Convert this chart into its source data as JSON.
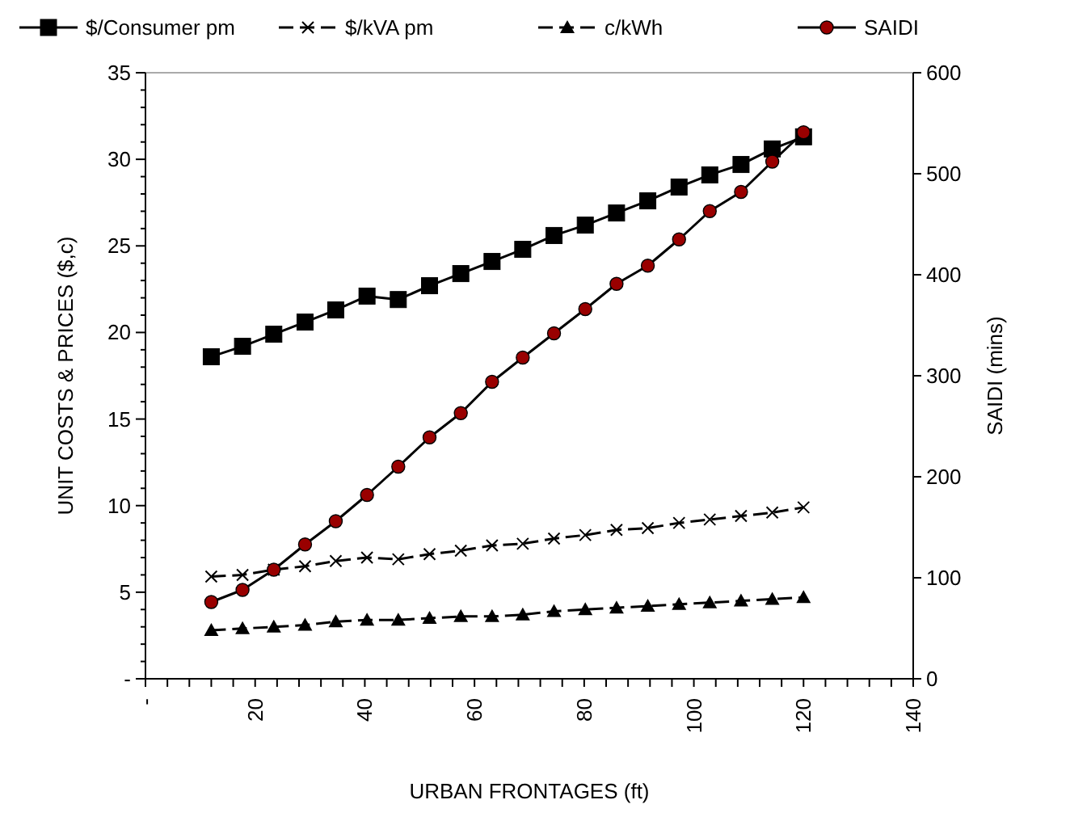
{
  "chart_data": {
    "type": "line",
    "xlabel": "URBAN FRONTAGES (ft)",
    "ylabel": "UNIT COSTS & PRICES ($,c)",
    "y2label": "SAIDI (mins)",
    "x": [
      12,
      17.7,
      23.4,
      29.1,
      34.7,
      40.4,
      46.1,
      51.8,
      57.5,
      63.2,
      68.8,
      74.5,
      80.2,
      85.9,
      91.6,
      97.3,
      102.9,
      108.6,
      114.3,
      120
    ],
    "series": [
      {
        "name": "$/Consumer pm",
        "color": "#000000",
        "marker": "square",
        "line_style": "solid",
        "values": [
          18.6,
          19.2,
          19.9,
          20.6,
          21.3,
          22.1,
          21.9,
          22.7,
          23.4,
          24.1,
          24.8,
          25.6,
          26.2,
          26.9,
          27.6,
          28.4,
          29.1,
          29.7,
          30.6,
          31.3
        ]
      },
      {
        "name": "$/kVA pm",
        "color": "#000000",
        "marker": "cross",
        "line_style": "dashed",
        "values": [
          5.9,
          6.0,
          6.3,
          6.5,
          6.8,
          7.0,
          6.9,
          7.2,
          7.4,
          7.7,
          7.8,
          8.1,
          8.3,
          8.6,
          8.7,
          9.0,
          9.2,
          9.4,
          9.6,
          9.9
        ]
      },
      {
        "name": "c/kWh",
        "color": "#000000",
        "marker": "triangle",
        "line_style": "dashed",
        "values": [
          2.8,
          2.9,
          3.0,
          3.1,
          3.3,
          3.4,
          3.4,
          3.5,
          3.6,
          3.6,
          3.7,
          3.9,
          4.0,
          4.1,
          4.2,
          4.3,
          4.4,
          4.5,
          4.6,
          4.7
        ]
      },
      {
        "name": "SAIDI",
        "color": "#990000",
        "marker": "circle",
        "line_style": "solid",
        "axis": "y2",
        "values": [
          76,
          88,
          108,
          133,
          156,
          182,
          210,
          239,
          263,
          294,
          318,
          342,
          366,
          391,
          409,
          435,
          463,
          482,
          512,
          541
        ]
      }
    ],
    "xlim": [
      0,
      140
    ],
    "ylim": [
      0,
      35
    ],
    "y2lim": [
      0,
      600
    ],
    "xticks": [
      {
        "value": 0,
        "label": "-"
      },
      {
        "value": 4,
        "label": null
      },
      {
        "value": 8,
        "label": null
      },
      {
        "value": 12,
        "label": null
      },
      {
        "value": 16,
        "label": null
      },
      20,
      {
        "value": 24,
        "label": null
      },
      {
        "value": 28,
        "label": null
      },
      {
        "value": 32,
        "label": null
      },
      {
        "value": 36,
        "label": null
      },
      40,
      {
        "value": 44,
        "label": null
      },
      {
        "value": 48,
        "label": null
      },
      {
        "value": 52,
        "label": null
      },
      {
        "value": 56,
        "label": null
      },
      60,
      {
        "value": 64,
        "label": null
      },
      {
        "value": 68,
        "label": null
      },
      {
        "value": 72,
        "label": null
      },
      {
        "value": 76,
        "label": null
      },
      80,
      {
        "value": 84,
        "label": null
      },
      {
        "value": 88,
        "label": null
      },
      {
        "value": 92,
        "label": null
      },
      {
        "value": 96,
        "label": null
      },
      100,
      {
        "value": 104,
        "label": null
      },
      {
        "value": 108,
        "label": null
      },
      {
        "value": 112,
        "label": null
      },
      {
        "value": 116,
        "label": null
      },
      120,
      {
        "value": 124,
        "label": null
      },
      {
        "value": 128,
        "label": null
      },
      {
        "value": 132,
        "label": null
      },
      {
        "value": 136,
        "label": null
      },
      140
    ],
    "yticks": [
      {
        "value": 0,
        "label": "-"
      },
      {
        "value": 1,
        "label": null
      },
      {
        "value": 2,
        "label": null
      },
      {
        "value": 3,
        "label": null
      },
      {
        "value": 4,
        "label": null
      },
      5,
      {
        "value": 6,
        "label": null
      },
      {
        "value": 7,
        "label": null
      },
      {
        "value": 8,
        "label": null
      },
      {
        "value": 9,
        "label": null
      },
      10,
      {
        "value": 11,
        "label": null
      },
      {
        "value": 12,
        "label": null
      },
      {
        "value": 13,
        "label": null
      },
      {
        "value": 14,
        "label": null
      },
      15,
      {
        "value": 16,
        "label": null
      },
      {
        "value": 17,
        "label": null
      },
      {
        "value": 18,
        "label": null
      },
      {
        "value": 19,
        "label": null
      },
      20,
      {
        "value": 21,
        "label": null
      },
      {
        "value": 22,
        "label": null
      },
      {
        "value": 23,
        "label": null
      },
      {
        "value": 24,
        "label": null
      },
      25,
      {
        "value": 26,
        "label": null
      },
      {
        "value": 27,
        "label": null
      },
      {
        "value": 28,
        "label": null
      },
      {
        "value": 29,
        "label": null
      },
      30,
      {
        "value": 31,
        "label": null
      },
      {
        "value": 32,
        "label": null
      },
      {
        "value": 33,
        "label": null
      },
      {
        "value": 34,
        "label": null
      },
      35
    ],
    "y2ticks": [
      0,
      100,
      200,
      300,
      400,
      500,
      600
    ],
    "grid": false,
    "legend": "top"
  }
}
